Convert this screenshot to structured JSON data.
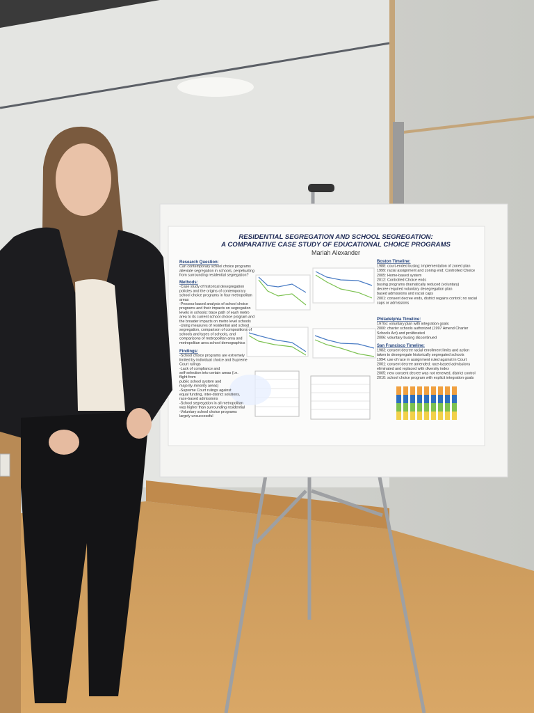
{
  "poster": {
    "title": "RESIDENTIAL SEGREGATION AND SCHOOL SEGREGATION:",
    "subtitle": "A COMPARATIVE CASE STUDY OF EDUCATIONAL CHOICE PROGRAMS",
    "author": "Mariah Alexander",
    "left_sections": [
      {
        "heading": "Research Question:",
        "lines": [
          "Can contemporary school choice programs",
          "alleviate segregation in schools, perpetuating",
          "from surrounding residential segregation?"
        ]
      },
      {
        "heading": "Methods:",
        "lines": [
          "-Case study of historical desegregation",
          "policies and the origins of contemporary",
          "school choice programs in four metropolitan",
          "areas",
          "-Process-based analysis of school choice",
          "programs and their impacts on segregation",
          "levels in schools: trace path of each metro",
          "area to its current school choice program and",
          "the broader impacts on metro level schools",
          "-Using measures of residential and school",
          "segregation, comparison of compositions of",
          "schools and types of schools, and",
          "comparisons of metropolitan area and",
          "metropolitan area school demographics"
        ]
      },
      {
        "heading": "Findings:",
        "lines": [
          "-School choice programs are extremely",
          "limited by individual choice and Supreme",
          "Court rulings",
          "-Lack of compliance and",
          "self-selection into certain areas (i.e.",
          "flight from",
          "public school system and",
          "majority-minority areas)",
          "-Supreme Court rulings against",
          "equal funding, inter-district solutions,",
          "race-based admissions",
          "-School segregation in all metropolitan",
          "was higher than surrounding residential",
          "-Voluntary school choice programs",
          "largely unsuccessful"
        ]
      }
    ],
    "right_sections": [
      {
        "heading": "Boston Timeline:",
        "lines": [
          "1988: court-ended busing; implementation of zoned plan",
          "1999: racial assignment and zoning end; Controlled Choice",
          "2005: Home-based system",
          "2012: Controlled Choice ends",
          "busing programs dramatically reduced (voluntary)",
          "decree required voluntary desegregation plan",
          "based admissions and racial caps",
          "2001: consent decree ends, district regains control; no racial",
          "caps or admissions"
        ]
      },
      {
        "heading": "Philadelphia Timeline:",
        "lines": [
          "1970s: voluntary plan with integration goals",
          "2000: charter schools authorized (1997 Amend Charter",
          "Schools Act) and proliferated",
          "2006: voluntary busing discontinued"
        ]
      },
      {
        "heading": "San Francisco Timeline:",
        "lines": [
          "1983: consent decree racial enrollment limits and action",
          "taken to desegregate historically segregated schools",
          "1994: use of race in assignment ruled against in Court",
          "2001: consent decree amended; race-based admissions",
          "eliminated and replaced with diversity index",
          "2005: new consent decree was not renewed, district control",
          "2010: school choice program with explicit integration goals"
        ]
      }
    ]
  }
}
